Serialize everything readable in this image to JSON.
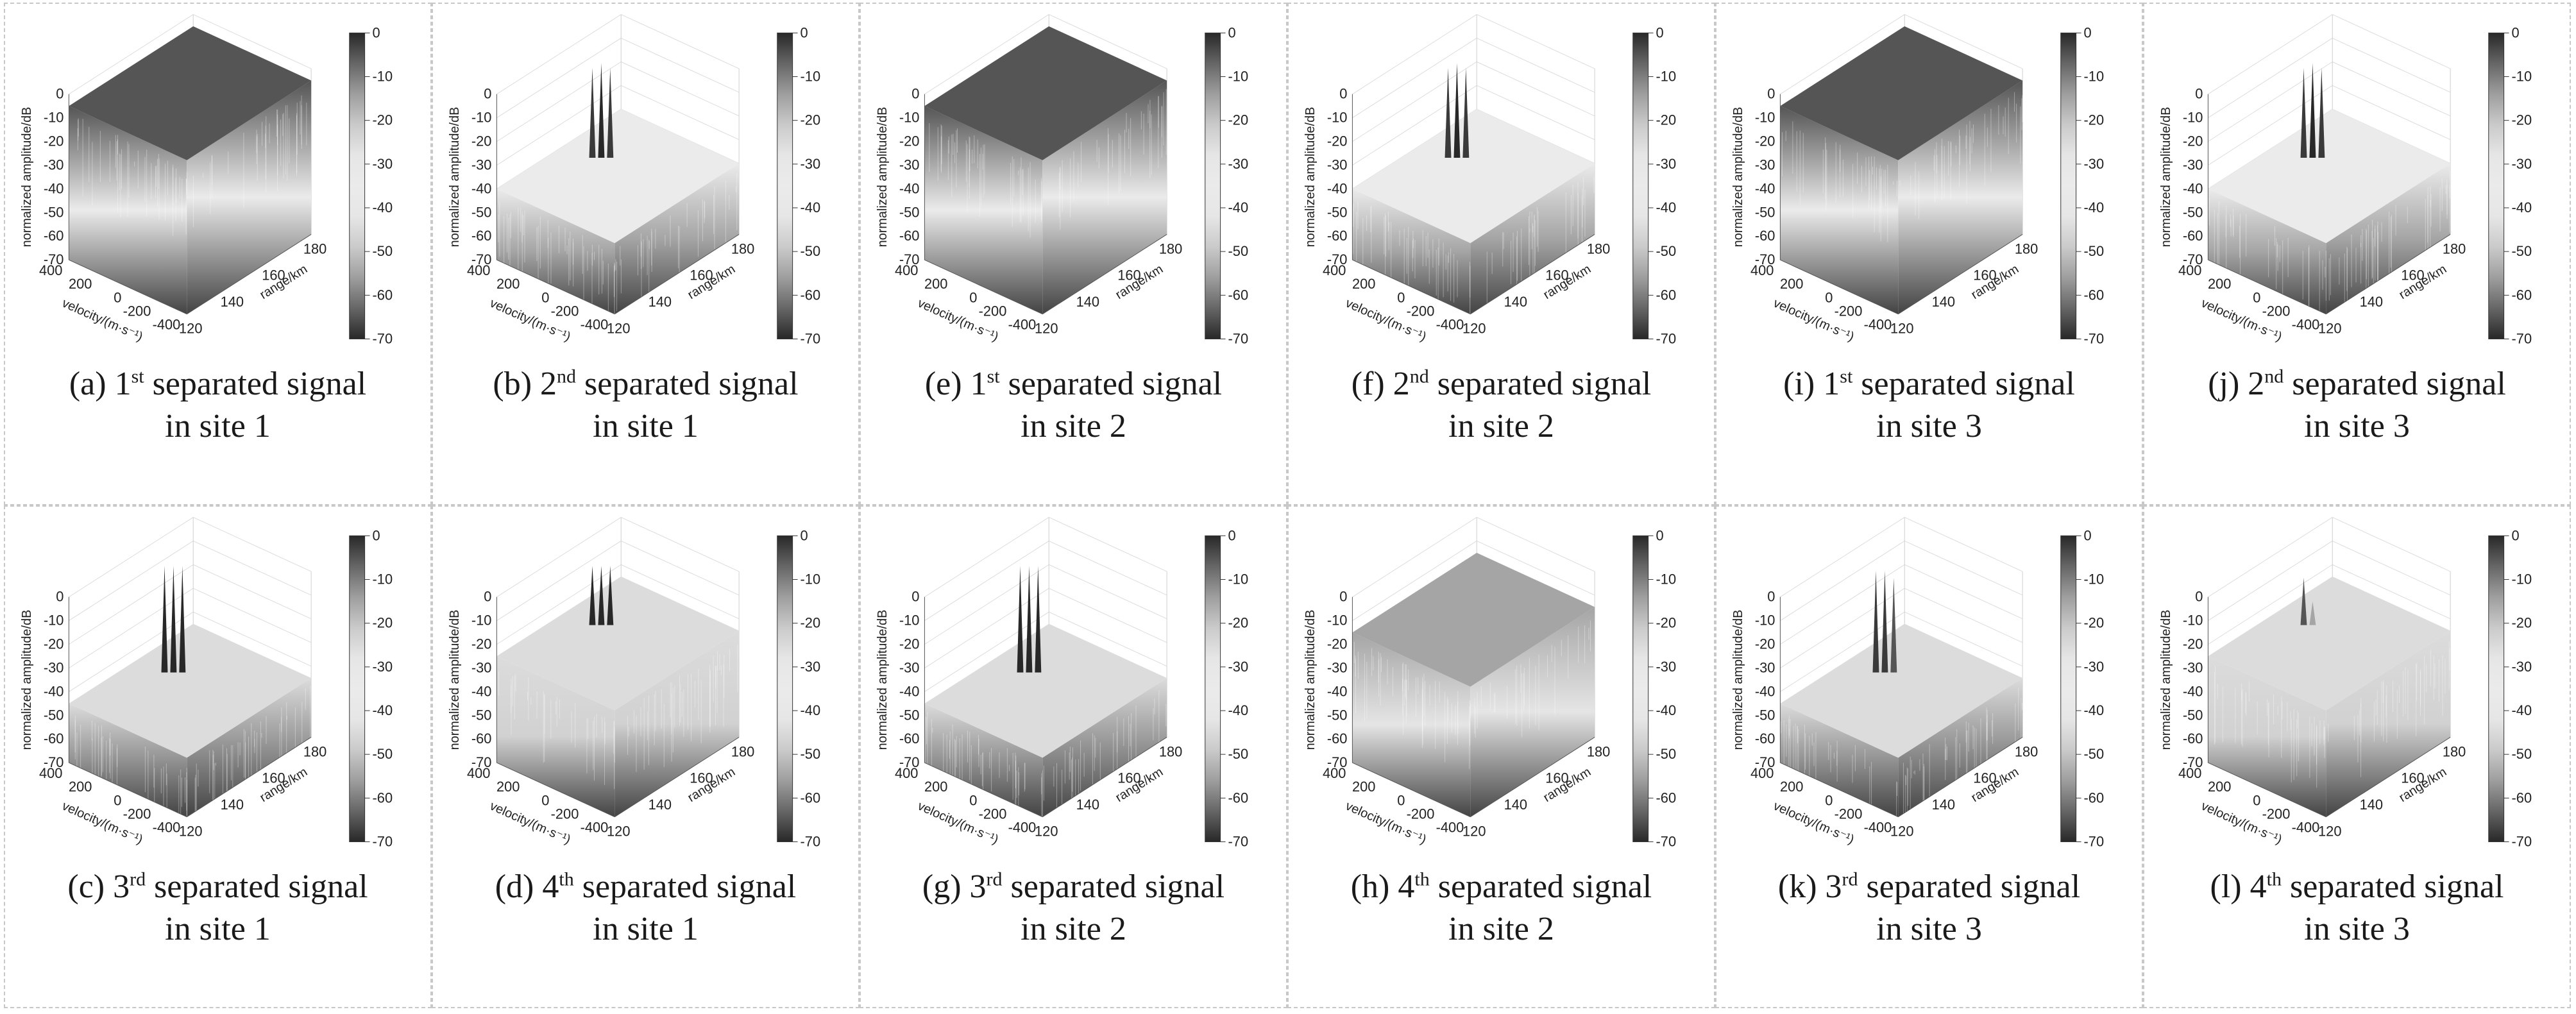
{
  "figure": {
    "chart_data": [
      {
        "type": "surface3d",
        "caption": {
          "label": "(a)",
          "ordinal": "1",
          "suffix": "st",
          "rest": "separated signal",
          "line2": "in site 1"
        },
        "zlabel": "normalized amplitude/dB",
        "xlabel": "range/km",
        "ylabel": "velocity/(m·s⁻¹)",
        "zticks": [
          "0",
          "-10",
          "-20",
          "-30",
          "-40",
          "-50",
          "-60",
          "-70"
        ],
        "yticks": [
          "400",
          "200",
          "0",
          "-200",
          "-400"
        ],
        "xticks": [
          "120",
          "140",
          "160",
          "180"
        ],
        "colorbar_ticks": [
          "0",
          "-10",
          "-20",
          "-30",
          "-40",
          "-50",
          "-60",
          "-70"
        ],
        "zlim": [
          -70,
          0
        ],
        "colormap": "gray",
        "top_level_db": -5,
        "noise_floor_db": -70,
        "peaks_db": []
      },
      {
        "type": "surface3d",
        "caption": {
          "label": "(b)",
          "ordinal": "2",
          "suffix": "nd",
          "rest": "separated signal",
          "line2": "in site 1"
        },
        "zlabel": "normalized amplitude/dB",
        "xlabel": "range/km",
        "ylabel": "velocity/(m·s⁻¹)",
        "zticks": [
          "0",
          "-10",
          "-20",
          "-30",
          "-40",
          "-50",
          "-60",
          "-70"
        ],
        "yticks": [
          "400",
          "200",
          "0",
          "-200",
          "-400"
        ],
        "xticks": [
          "120",
          "140",
          "160",
          "180"
        ],
        "colorbar_ticks": [
          "0",
          "-10",
          "-20",
          "-30",
          "-40",
          "-50",
          "-60",
          "-70"
        ],
        "zlim": [
          -70,
          0
        ],
        "colormap": "gray",
        "top_level_db": -40,
        "noise_floor_db": -70,
        "peaks_db": [
          -2,
          0,
          -2
        ]
      },
      {
        "type": "surface3d",
        "caption": {
          "label": "(e)",
          "ordinal": "1",
          "suffix": "st",
          "rest": "separated signal",
          "line2": "in site 2"
        },
        "zlabel": "normalized amplitude/dB",
        "xlabel": "range/km",
        "ylabel": "velocity/(m·s⁻¹)",
        "zticks": [
          "0",
          "-10",
          "-20",
          "-30",
          "-40",
          "-50",
          "-60",
          "-70"
        ],
        "yticks": [
          "400",
          "200",
          "0",
          "-200",
          "-400"
        ],
        "xticks": [
          "120",
          "140",
          "160",
          "180"
        ],
        "colorbar_ticks": [
          "0",
          "-10",
          "-20",
          "-30",
          "-40",
          "-50",
          "-60",
          "-70"
        ],
        "zlim": [
          -70,
          0
        ],
        "colormap": "gray",
        "top_level_db": -5,
        "noise_floor_db": -70,
        "peaks_db": []
      },
      {
        "type": "surface3d",
        "caption": {
          "label": "(f)",
          "ordinal": "2",
          "suffix": "nd",
          "rest": "separated signal",
          "line2": "in site 2"
        },
        "zlabel": "normalized amplitude/dB",
        "xlabel": "range/km",
        "ylabel": "velocity/(m·s⁻¹)",
        "zticks": [
          "0",
          "-10",
          "-20",
          "-30",
          "-40",
          "-50",
          "-60",
          "-70"
        ],
        "yticks": [
          "400",
          "200",
          "0",
          "-200",
          "-400"
        ],
        "xticks": [
          "120",
          "140",
          "160",
          "180"
        ],
        "colorbar_ticks": [
          "0",
          "-10",
          "-20",
          "-30",
          "-40",
          "-50",
          "-60",
          "-70"
        ],
        "zlim": [
          -70,
          0
        ],
        "colormap": "gray",
        "top_level_db": -40,
        "noise_floor_db": -70,
        "peaks_db": [
          -2,
          0,
          -2
        ]
      },
      {
        "type": "surface3d",
        "caption": {
          "label": "(i)",
          "ordinal": "1",
          "suffix": "st",
          "rest": "separated signal",
          "line2": "in site 3"
        },
        "zlabel": "normalized amplitude/dB",
        "xlabel": "range/km",
        "ylabel": "velocity/(m·s⁻¹)",
        "zticks": [
          "0",
          "-10",
          "-20",
          "-30",
          "-40",
          "-50",
          "-60",
          "-70"
        ],
        "yticks": [
          "400",
          "200",
          "0",
          "-200",
          "-400"
        ],
        "xticks": [
          "120",
          "140",
          "160",
          "180"
        ],
        "colorbar_ticks": [
          "0",
          "-10",
          "-20",
          "-30",
          "-40",
          "-50",
          "-60",
          "-70"
        ],
        "zlim": [
          -70,
          0
        ],
        "colormap": "gray",
        "top_level_db": -5,
        "noise_floor_db": -70,
        "peaks_db": []
      },
      {
        "type": "surface3d",
        "caption": {
          "label": "(j)",
          "ordinal": "2",
          "suffix": "nd",
          "rest": "separated signal",
          "line2": "in site 3"
        },
        "zlabel": "normalized amplitude/dB",
        "xlabel": "range/km",
        "ylabel": "velocity/(m·s⁻¹)",
        "zticks": [
          "0",
          "-10",
          "-20",
          "-30",
          "-40",
          "-50",
          "-60",
          "-70"
        ],
        "yticks": [
          "400",
          "200",
          "0",
          "-200",
          "-400"
        ],
        "xticks": [
          "120",
          "140",
          "160",
          "180"
        ],
        "colorbar_ticks": [
          "0",
          "-10",
          "-20",
          "-30",
          "-40",
          "-50",
          "-60",
          "-70"
        ],
        "zlim": [
          -70,
          0
        ],
        "colormap": "gray",
        "top_level_db": -40,
        "noise_floor_db": -70,
        "peaks_db": [
          -2,
          0,
          -2
        ]
      },
      {
        "type": "surface3d",
        "caption": {
          "label": "(c)",
          "ordinal": "3",
          "suffix": "rd",
          "rest": "separated signal",
          "line2": "in site 1"
        },
        "zlabel": "normalized amplitude/dB",
        "xlabel": "range/km",
        "ylabel": "velocity/(m·s⁻¹)",
        "zticks": [
          "0",
          "-10",
          "-20",
          "-30",
          "-40",
          "-50",
          "-60",
          "-70"
        ],
        "yticks": [
          "400",
          "200",
          "0",
          "-200",
          "-400"
        ],
        "xticks": [
          "120",
          "140",
          "160",
          "180"
        ],
        "colorbar_ticks": [
          "0",
          "-10",
          "-20",
          "-30",
          "-40",
          "-50",
          "-60",
          "-70"
        ],
        "zlim": [
          -70,
          0
        ],
        "colormap": "gray",
        "top_level_db": -45,
        "noise_floor_db": -70,
        "peaks_db": [
          0,
          0,
          0
        ]
      },
      {
        "type": "surface3d",
        "caption": {
          "label": "(d)",
          "ordinal": "4",
          "suffix": "th",
          "rest": "separated signal",
          "line2": "in site 1"
        },
        "zlabel": "normalized amplitude/dB",
        "xlabel": "range/km",
        "ylabel": "velocity/(m·s⁻¹)",
        "zticks": [
          "0",
          "-10",
          "-20",
          "-30",
          "-40",
          "-50",
          "-60",
          "-70"
        ],
        "yticks": [
          "400",
          "200",
          "0",
          "-200",
          "-400"
        ],
        "xticks": [
          "120",
          "140",
          "160",
          "180"
        ],
        "colorbar_ticks": [
          "0",
          "-10",
          "-20",
          "-30",
          "-40",
          "-50",
          "-60",
          "-70"
        ],
        "zlim": [
          -70,
          0
        ],
        "colormap": "gray",
        "top_level_db": -25,
        "noise_floor_db": -70,
        "peaks_db": [
          0,
          0,
          0
        ]
      },
      {
        "type": "surface3d",
        "caption": {
          "label": "(g)",
          "ordinal": "3",
          "suffix": "rd",
          "rest": "separated signal",
          "line2": "in site 2"
        },
        "zlabel": "normalized amplitude/dB",
        "xlabel": "range/km",
        "ylabel": "velocity/(m·s⁻¹)",
        "zticks": [
          "0",
          "-10",
          "-20",
          "-30",
          "-40",
          "-50",
          "-60",
          "-70"
        ],
        "yticks": [
          "400",
          "200",
          "0",
          "-200",
          "-400"
        ],
        "xticks": [
          "120",
          "140",
          "160",
          "180"
        ],
        "colorbar_ticks": [
          "0",
          "-10",
          "-20",
          "-30",
          "-40",
          "-50",
          "-60",
          "-70"
        ],
        "zlim": [
          -70,
          0
        ],
        "colormap": "gray",
        "top_level_db": -45,
        "noise_floor_db": -70,
        "peaks_db": [
          0,
          0,
          0
        ]
      },
      {
        "type": "surface3d",
        "caption": {
          "label": "(h)",
          "ordinal": "4",
          "suffix": "th",
          "rest": "separated signal",
          "line2": "in site 2"
        },
        "zlabel": "normalized amplitude/dB",
        "xlabel": "range/km",
        "ylabel": "velocity/(m·s⁻¹)",
        "zticks": [
          "0",
          "-10",
          "-20",
          "-30",
          "-40",
          "-50",
          "-60",
          "-70"
        ],
        "yticks": [
          "400",
          "200",
          "0",
          "-200",
          "-400"
        ],
        "xticks": [
          "120",
          "140",
          "160",
          "180"
        ],
        "colorbar_ticks": [
          "0",
          "-10",
          "-20",
          "-30",
          "-40",
          "-50",
          "-60",
          "-70"
        ],
        "zlim": [
          -70,
          0
        ],
        "colormap": "gray",
        "top_level_db": -15,
        "noise_floor_db": -70,
        "peaks_db": []
      },
      {
        "type": "surface3d",
        "caption": {
          "label": "(k)",
          "ordinal": "3",
          "suffix": "rd",
          "rest": "separated signal",
          "line2": "in site 3"
        },
        "zlabel": "normalized amplitude/dB",
        "xlabel": "range/km",
        "ylabel": "velocity/(m·s⁻¹)",
        "zticks": [
          "0",
          "-10",
          "-20",
          "-30",
          "-40",
          "-50",
          "-60",
          "-70"
        ],
        "yticks": [
          "400",
          "200",
          "0",
          "-200",
          "-400"
        ],
        "xticks": [
          "120",
          "140",
          "160",
          "180"
        ],
        "colorbar_ticks": [
          "0",
          "-10",
          "-20",
          "-30",
          "-40",
          "-50",
          "-60",
          "-70"
        ],
        "zlim": [
          -70,
          0
        ],
        "colormap": "gray",
        "top_level_db": -45,
        "noise_floor_db": -70,
        "peaks_db": [
          -2,
          -2,
          -5
        ]
      },
      {
        "type": "surface3d",
        "caption": {
          "label": "(l)",
          "ordinal": "4",
          "suffix": "th",
          "rest": "separated signal",
          "line2": "in site 3"
        },
        "zlabel": "normalized amplitude/dB",
        "xlabel": "range/km",
        "ylabel": "velocity/(m·s⁻¹)",
        "zticks": [
          "0",
          "-10",
          "-20",
          "-30",
          "-40",
          "-50",
          "-60",
          "-70"
        ],
        "yticks": [
          "400",
          "200",
          "0",
          "-200",
          "-400"
        ],
        "xticks": [
          "120",
          "140",
          "160",
          "180"
        ],
        "colorbar_ticks": [
          "0",
          "-10",
          "-20",
          "-30",
          "-40",
          "-50",
          "-60",
          "-70"
        ],
        "zlim": [
          -70,
          0
        ],
        "colormap": "gray",
        "top_level_db": -25,
        "noise_floor_db": -70,
        "peaks_db": [
          -5,
          -15
        ]
      }
    ]
  }
}
